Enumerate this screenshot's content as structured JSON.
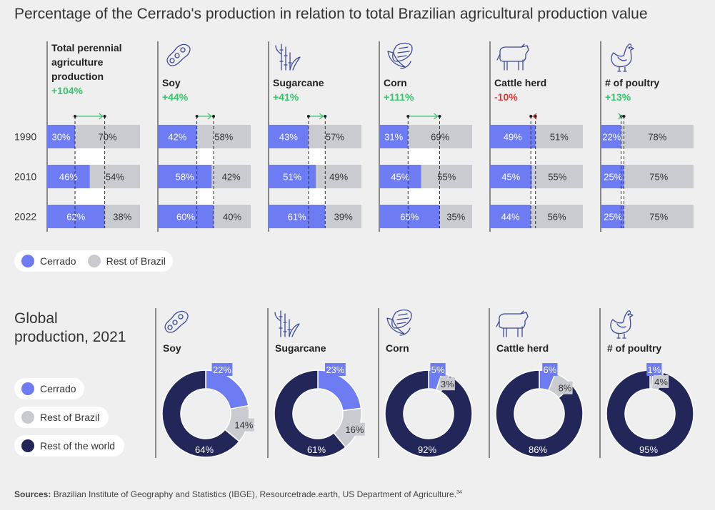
{
  "title": "Percentage of the Cerrado's production in relation to total Brazilian agricultural production value",
  "colors": {
    "cerrado": "#6d7cf2",
    "rest_of_brazil": "#c9cbd1",
    "rest_of_world": "#232659",
    "positive": "#35c46b",
    "negative": "#e03a3a",
    "background": "#efefef"
  },
  "legend_top": {
    "cerrado": "Cerrado",
    "rest_of_brazil": "Rest of Brazil"
  },
  "global": {
    "title": "Global production, 2021",
    "legend": {
      "cerrado": "Cerrado",
      "rest_of_brazil": "Rest of Brazil",
      "rest_of_world": "Rest of the world"
    }
  },
  "sources": {
    "label": "Sources:",
    "text": "Brazilian Institute of Geography and Statistics (IBGE), Resourcetrade.earth, US Department of Agriculture.",
    "footnote": "34"
  },
  "chart_data": [
    {
      "type": "bar",
      "subtype": "stacked-horizontal-100",
      "title": "Percentage of the Cerrado's production in relation to total Brazilian agricultural production value",
      "years": [
        "1990",
        "2010",
        "2022"
      ],
      "series_names": [
        "Cerrado",
        "Rest of Brazil"
      ],
      "groups": [
        {
          "name": "Total perennial agriculture production",
          "change": "+104%",
          "trend": "positive",
          "icon": "none",
          "cerrado": [
            30,
            46,
            62
          ],
          "rest": [
            70,
            54,
            38
          ]
        },
        {
          "name": "Soy",
          "change": "+44%",
          "trend": "positive",
          "icon": "soy-icon",
          "cerrado": [
            42,
            58,
            60
          ],
          "rest": [
            58,
            42,
            40
          ]
        },
        {
          "name": "Sugarcane",
          "change": "+41%",
          "trend": "positive",
          "icon": "sugarcane-icon",
          "cerrado": [
            43,
            51,
            61
          ],
          "rest": [
            57,
            49,
            39
          ]
        },
        {
          "name": "Corn",
          "change": "+111%",
          "trend": "positive",
          "icon": "corn-icon",
          "cerrado": [
            31,
            45,
            65
          ],
          "rest": [
            69,
            55,
            35
          ]
        },
        {
          "name": "Cattle herd",
          "change": "-10%",
          "trend": "negative",
          "icon": "cattle-icon",
          "cerrado": [
            49,
            45,
            44
          ],
          "rest": [
            51,
            55,
            56
          ]
        },
        {
          "name": "# of poultry",
          "change": "+13%",
          "trend": "positive",
          "icon": "poultry-icon",
          "cerrado": [
            22,
            25,
            25
          ],
          "rest": [
            78,
            75,
            75
          ]
        }
      ]
    },
    {
      "type": "pie",
      "subtype": "donut",
      "title": "Global production, 2021",
      "series_names": [
        "Cerrado",
        "Rest of Brazil",
        "Rest of the world"
      ],
      "donuts": [
        {
          "name": "Soy",
          "icon": "soy-icon",
          "values": [
            22,
            14,
            64
          ]
        },
        {
          "name": "Sugarcane",
          "icon": "sugarcane-icon",
          "values": [
            23,
            16,
            61
          ]
        },
        {
          "name": "Corn",
          "icon": "corn-icon",
          "values": [
            5,
            3,
            92
          ]
        },
        {
          "name": "Cattle herd",
          "icon": "cattle-icon",
          "values": [
            6,
            8,
            86
          ]
        },
        {
          "name": "# of poultry",
          "icon": "poultry-icon",
          "values": [
            1,
            4,
            95
          ]
        }
      ]
    }
  ]
}
